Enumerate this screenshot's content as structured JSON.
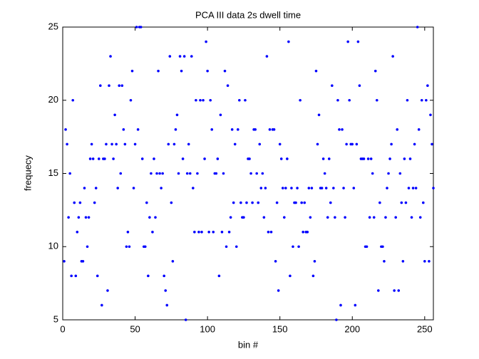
{
  "chart_data": {
    "type": "scatter",
    "title": "PCA III data 2s dwell time",
    "x_label": "bin #",
    "y_label": "frequecy",
    "color": "#0000ff",
    "xlim": [
      0,
      256
    ],
    "ylim": [
      5,
      25
    ],
    "xticks": [
      0,
      50,
      100,
      150,
      200,
      250
    ],
    "yticks": [
      5,
      10,
      15,
      20,
      25
    ],
    "x": [
      1,
      2,
      3,
      4,
      5,
      6,
      7,
      8,
      9,
      10,
      11,
      12,
      13,
      14,
      15,
      16,
      17,
      18,
      19,
      20,
      21,
      22,
      23,
      24,
      25,
      26,
      27,
      28,
      29,
      30,
      31,
      32,
      33,
      34,
      35,
      36,
      37,
      38,
      39,
      40,
      41,
      42,
      43,
      44,
      45,
      46,
      47,
      48,
      49,
      50,
      51,
      52,
      53,
      54,
      55,
      56,
      57,
      58,
      59,
      60,
      61,
      62,
      63,
      64,
      65,
      66,
      67,
      68,
      69,
      70,
      71,
      72,
      73,
      74,
      75,
      76,
      77,
      78,
      79,
      80,
      81,
      82,
      83,
      84,
      85,
      86,
      87,
      88,
      89,
      90,
      91,
      92,
      93,
      94,
      95,
      96,
      97,
      98,
      99,
      100,
      101,
      102,
      103,
      104,
      105,
      106,
      107,
      108,
      109,
      110,
      111,
      112,
      113,
      114,
      115,
      116,
      117,
      118,
      119,
      120,
      121,
      122,
      123,
      124,
      125,
      126,
      127,
      128,
      129,
      130,
      131,
      132,
      133,
      134,
      135,
      136,
      137,
      138,
      139,
      140,
      141,
      142,
      143,
      144,
      145,
      146,
      147,
      148,
      149,
      150,
      151,
      152,
      153,
      154,
      155,
      156,
      157,
      158,
      159,
      160,
      161,
      162,
      163,
      164,
      165,
      166,
      167,
      168,
      169,
      170,
      171,
      172,
      173,
      174,
      175,
      176,
      177,
      178,
      179,
      180,
      181,
      182,
      183,
      184,
      185,
      186,
      187,
      188,
      189,
      190,
      191,
      192,
      193,
      194,
      195,
      196,
      197,
      198,
      199,
      200,
      201,
      202,
      203,
      204,
      205,
      206,
      207,
      208,
      209,
      210,
      211,
      212,
      213,
      214,
      215,
      216,
      217,
      218,
      219,
      220,
      221,
      222,
      223,
      224,
      225,
      226,
      227,
      228,
      229,
      230,
      231,
      232,
      233,
      234,
      235,
      236,
      237,
      238,
      239,
      240,
      241,
      242,
      243,
      244,
      245,
      246,
      247,
      248,
      249,
      250,
      251,
      252,
      253,
      254,
      255,
      256
    ],
    "values": [
      9,
      18,
      17,
      12,
      15,
      8,
      20,
      13,
      8,
      11,
      12,
      13,
      9,
      9,
      14,
      12,
      10,
      12,
      16,
      17,
      16,
      13,
      14,
      8,
      16,
      21,
      6,
      16,
      16,
      17,
      7,
      21,
      23,
      17,
      16,
      19,
      17,
      14,
      21,
      15,
      21,
      18,
      17,
      10,
      11,
      10,
      20,
      22,
      14,
      17,
      25,
      18,
      25,
      25,
      16,
      10,
      10,
      13,
      8,
      12,
      15,
      11,
      16,
      12,
      15,
      22,
      15,
      14,
      15,
      8,
      7,
      6,
      17,
      23,
      13,
      9,
      17,
      18,
      19,
      15,
      23,
      22,
      16,
      23,
      5,
      15,
      17,
      15,
      23,
      14,
      11,
      20,
      15,
      11,
      20,
      11,
      20,
      16,
      24,
      22,
      11,
      20,
      18,
      11,
      15,
      15,
      16,
      8,
      19,
      11,
      15,
      22,
      10,
      21,
      11,
      12,
      18,
      13,
      17,
      10,
      18,
      20,
      13,
      12,
      12,
      20,
      13,
      16,
      16,
      15,
      13,
      18,
      18,
      15,
      13,
      17,
      14,
      15,
      12,
      14,
      23,
      11,
      18,
      11,
      18,
      18,
      9,
      13,
      7,
      17,
      16,
      14,
      12,
      14,
      16,
      24,
      8,
      14,
      10,
      13,
      13,
      14,
      10,
      20,
      13,
      11,
      13,
      11,
      11,
      14,
      12,
      14,
      8,
      9,
      22,
      17,
      19,
      14,
      14,
      16,
      15,
      14,
      12,
      16,
      13,
      21,
      14,
      12,
      5,
      20,
      18,
      6,
      18,
      14,
      12,
      17,
      24,
      20,
      17,
      17,
      14,
      6,
      17,
      24,
      21,
      16,
      16,
      16,
      10,
      10,
      16,
      12,
      16,
      15,
      12,
      22,
      20,
      7,
      13,
      10,
      10,
      9,
      12,
      14,
      15,
      16,
      17,
      23,
      7,
      12,
      18,
      7,
      15,
      13,
      9,
      16,
      13,
      20,
      14,
      16,
      12,
      14,
      17,
      14,
      25,
      18,
      12,
      20,
      13,
      9,
      20,
      21,
      9,
      19,
      17,
      14
    ]
  }
}
